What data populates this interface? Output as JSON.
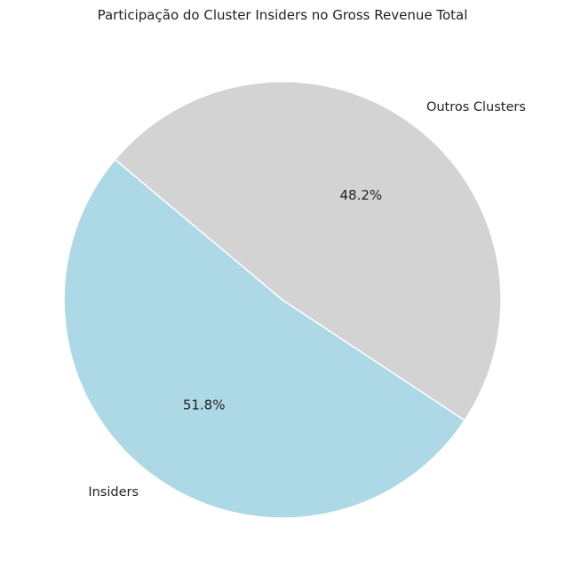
{
  "chart_data": {
    "type": "pie",
    "title": "Participação do Cluster Insiders no Gross Revenue Total",
    "slices": [
      {
        "label": "Insiders",
        "pct_label": "51.8%",
        "value": 51.8,
        "color": "#add8e6"
      },
      {
        "label": "Outros Clusters",
        "pct_label": "48.2%",
        "value": 48.2,
        "color": "#d3d3d3"
      }
    ],
    "start_angle_deg": 140,
    "direction": "counterclockwise",
    "edge_color": "#ffffff"
  }
}
